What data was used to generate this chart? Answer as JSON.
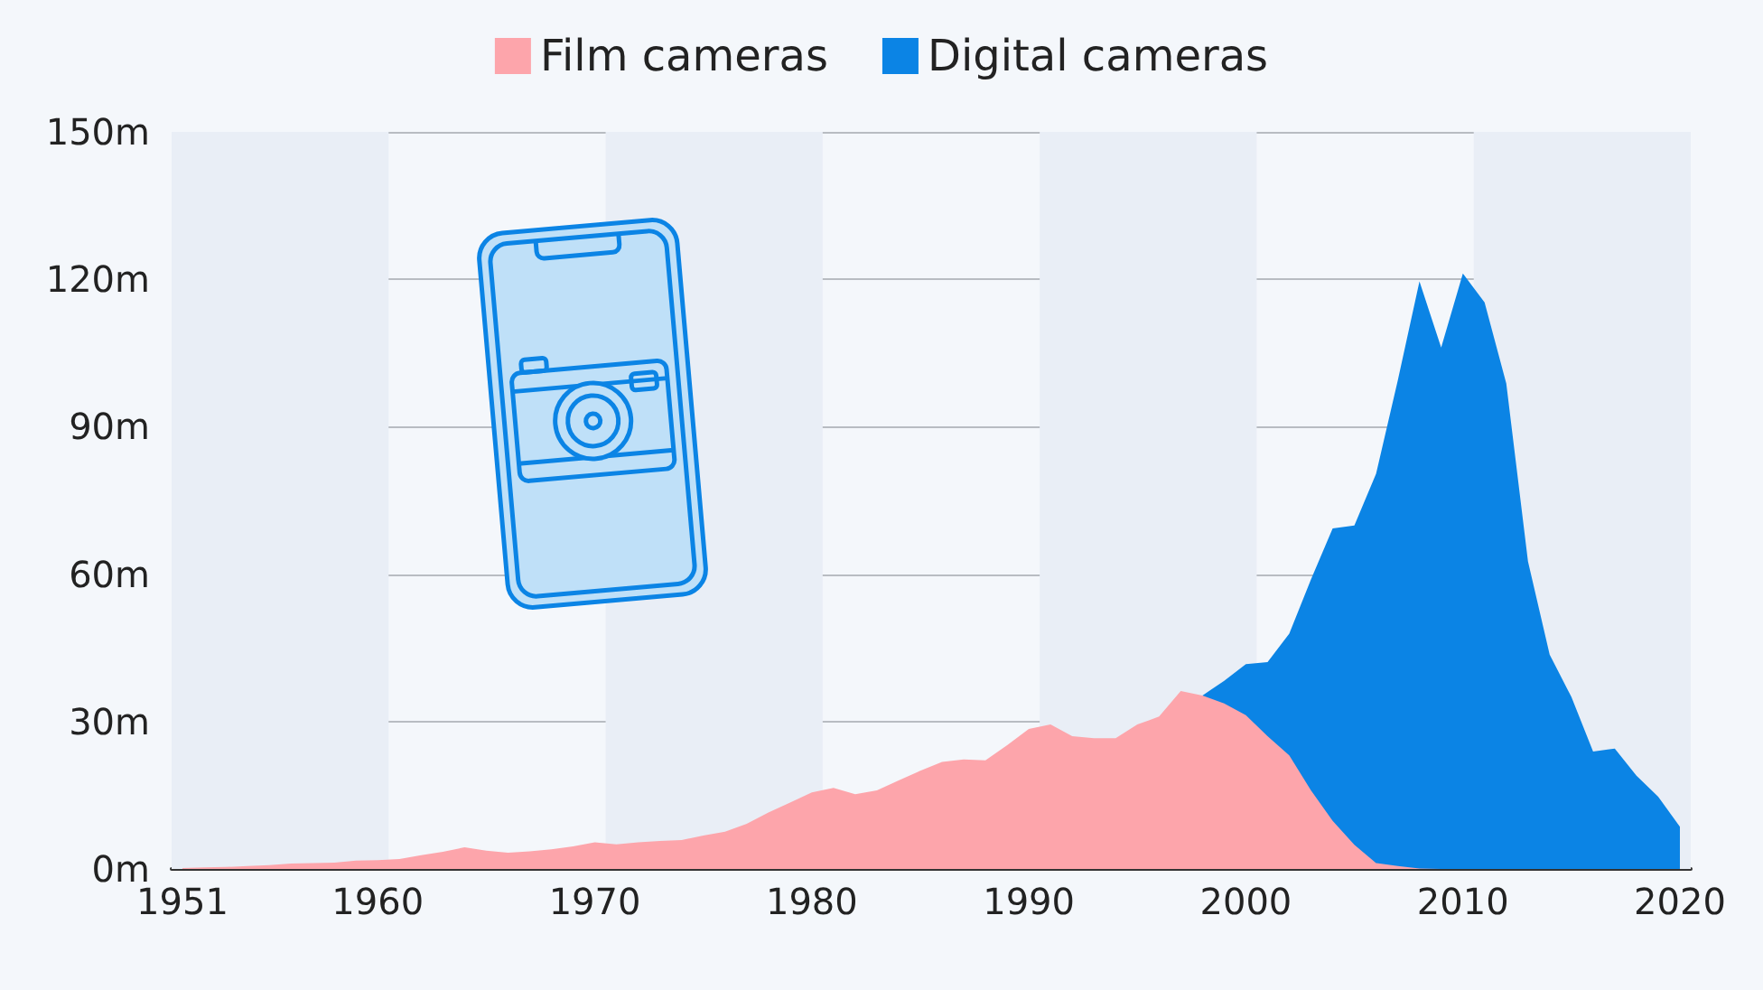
{
  "chart_data": {
    "type": "area",
    "stacked": true,
    "x": [
      1951,
      1952,
      1953,
      1954,
      1955,
      1956,
      1957,
      1958,
      1959,
      1960,
      1961,
      1962,
      1963,
      1964,
      1965,
      1966,
      1967,
      1968,
      1969,
      1970,
      1971,
      1972,
      1973,
      1974,
      1975,
      1976,
      1977,
      1978,
      1979,
      1980,
      1981,
      1982,
      1983,
      1984,
      1985,
      1986,
      1987,
      1988,
      1989,
      1990,
      1991,
      1992,
      1993,
      1994,
      1995,
      1996,
      1997,
      1998,
      1999,
      2000,
      2001,
      2002,
      2003,
      2004,
      2005,
      2006,
      2007,
      2008,
      2009,
      2010,
      2011,
      2012,
      2013,
      2014,
      2015,
      2016,
      2017,
      2018,
      2019,
      2020
    ],
    "series": [
      {
        "name": "Film cameras",
        "color": "#fda5ab",
        "values": [
          0.2,
          0.3,
          0.4,
          0.6,
          0.8,
          1.1,
          1.2,
          1.3,
          1.7,
          1.8,
          2.0,
          2.8,
          3.5,
          4.4,
          3.7,
          3.3,
          3.6,
          4.0,
          4.6,
          5.4,
          5.0,
          5.4,
          5.7,
          5.9,
          6.8,
          7.6,
          9.2,
          11.5,
          13.5,
          15.6,
          16.5,
          15.2,
          16.0,
          18.0,
          20.0,
          21.8,
          22.3,
          22.1,
          25.2,
          28.5,
          29.4,
          27.0,
          26.6,
          26.6,
          29.4,
          31.0,
          36.2,
          35.3,
          33.7,
          31.3,
          27.0,
          23.1,
          16.0,
          9.8,
          4.9,
          1.2,
          0.6,
          0.1,
          0,
          0,
          0,
          0,
          0,
          0,
          0,
          0,
          0,
          0,
          0,
          0
        ]
      },
      {
        "name": "Digital cameras",
        "color": "#0b84e5",
        "values": [
          null,
          null,
          null,
          null,
          null,
          null,
          null,
          null,
          null,
          null,
          null,
          null,
          null,
          null,
          null,
          null,
          null,
          null,
          null,
          null,
          null,
          null,
          null,
          null,
          null,
          null,
          null,
          null,
          null,
          null,
          null,
          null,
          null,
          null,
          null,
          null,
          null,
          null,
          null,
          null,
          null,
          null,
          null,
          null,
          null,
          null,
          null,
          0,
          4.6,
          10.4,
          15.1,
          24.8,
          42.9,
          59.5,
          65.0,
          79.2,
          98.8,
          119.5,
          106.1,
          121.2,
          115.3,
          98.8,
          62.6,
          43.6,
          35.0,
          23.9,
          24.5,
          19.0,
          14.7,
          8.6
        ]
      }
    ],
    "xlim": [
      1950.5,
      2020.5
    ],
    "xticks": [
      1951,
      1960,
      1970,
      1980,
      1990,
      2000,
      2010,
      2020
    ],
    "ylim": [
      0,
      150
    ],
    "yticks": [
      {
        "value": 0,
        "label": "0m"
      },
      {
        "value": 30,
        "label": "30m"
      },
      {
        "value": 60,
        "label": "60m"
      },
      {
        "value": 90,
        "label": "90m"
      },
      {
        "value": 120,
        "label": "120m"
      },
      {
        "value": 150,
        "label": "150m"
      }
    ],
    "bands": [
      {
        "axis": "x",
        "from": 1950.5,
        "to": 1960.5,
        "color": "#e9eef6"
      },
      {
        "axis": "x",
        "from": 1970.5,
        "to": 1980.5,
        "color": "#e9eef6"
      },
      {
        "axis": "x",
        "from": 1990.5,
        "to": 2000.5,
        "color": "#e9eef6"
      },
      {
        "axis": "x",
        "from": 2010.5,
        "to": 2020.5,
        "color": "#e9eef6"
      }
    ],
    "grid": "y",
    "legend": "top"
  }
}
